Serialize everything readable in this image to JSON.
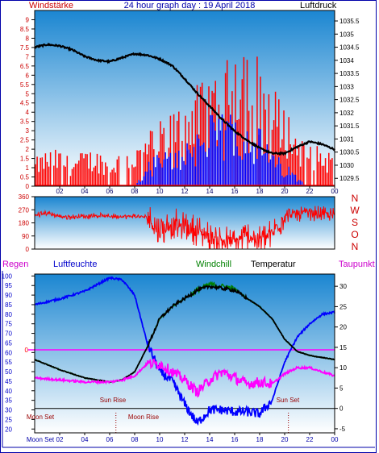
{
  "title": "24 hour graph day : 19 April 2018",
  "colors": {
    "wind": "#ff0000",
    "gust": "#0000ff",
    "pressure": "#000000",
    "direction": "#ff0000",
    "humidity": "#0000ff",
    "temperature": "#000000",
    "windchill": "#008000",
    "dewpoint": "#ff00ff",
    "rain": "#ff0000",
    "axis_blue": "#0000aa",
    "gradient_top": "#1b86d1",
    "gradient_bottom": "#ffffff"
  },
  "x_ticks": [
    "02",
    "04",
    "06",
    "08",
    "10",
    "12",
    "14",
    "16",
    "18",
    "20",
    "22",
    "00"
  ],
  "panel1": {
    "left_label": "Windstärke",
    "right_label": "Luftdruck",
    "wind_ticks": [
      "0",
      "0.5",
      "1",
      "1.5",
      "2",
      "2.5",
      "3",
      "3.5",
      "4",
      "4.5",
      "5",
      "5.5",
      "6",
      "6.5",
      "7",
      "7.5",
      "8",
      "8.5",
      "9"
    ],
    "pressure_ticks": [
      "1029.5",
      "1030",
      "1030.5",
      "1031",
      "1031.5",
      "1032",
      "1032.5",
      "1033",
      "1033.5",
      "1034",
      "1034.5",
      "1035",
      "1035.5"
    ]
  },
  "panel2": {
    "dir_ticks": [
      "0",
      "90",
      "180",
      "270",
      "360"
    ],
    "compass": [
      "N",
      "W",
      "S",
      "O",
      "N"
    ]
  },
  "panel3": {
    "labels": {
      "rain": "Regen",
      "humidity": "Luftfeuchte",
      "windchill": "Windchill",
      "temperature": "Temperatur",
      "dewpoint": "Taupunkt"
    },
    "hum_ticks": [
      "20",
      "25",
      "30",
      "35",
      "40",
      "45",
      "50",
      "55",
      "60",
      "65",
      "70",
      "75",
      "80",
      "85",
      "90",
      "95",
      "100"
    ],
    "temp_ticks": [
      "-5",
      "0",
      "5",
      "10",
      "15",
      "20",
      "25",
      "30"
    ],
    "rain_zero": "0",
    "events": {
      "sun_rise": "Sun Rise",
      "sun_set": "Sun Set",
      "moon_set": "Moon Set",
      "moon_rise": "Moon Rise",
      "moon_set_bottom": "Moon Set"
    }
  },
  "chart_data": [
    {
      "type": "line",
      "title": "24 hour graph day : 19 April 2018",
      "ylabel": "Windstärke",
      "y2label": "Luftdruck",
      "x_unit": "hour",
      "ylim": [
        0,
        9.5
      ],
      "y2lim": [
        1029.2,
        1035.9
      ],
      "series": [
        {
          "name": "Luftdruck",
          "axis": "right",
          "x": [
            0,
            1,
            2,
            3,
            4,
            5,
            6,
            7,
            8,
            9,
            10,
            11,
            12,
            13,
            14,
            15,
            16,
            17,
            18,
            19,
            20,
            21,
            22,
            23,
            24
          ],
          "values": [
            1034.5,
            1034.6,
            1034.55,
            1034.4,
            1034.15,
            1034.0,
            1033.95,
            1034.1,
            1034.25,
            1034.2,
            1034.05,
            1033.8,
            1033.3,
            1032.75,
            1032.25,
            1031.75,
            1031.3,
            1030.95,
            1030.65,
            1030.45,
            1030.45,
            1030.7,
            1030.9,
            1030.8,
            1030.6
          ]
        },
        {
          "name": "Wind max",
          "x": [
            0,
            1,
            2,
            3,
            4,
            5,
            6,
            7,
            8,
            9,
            10,
            11,
            12,
            13,
            14,
            15,
            16,
            17,
            18,
            19,
            20,
            21,
            22,
            23,
            24
          ],
          "values": [
            1.5,
            2,
            2,
            1.5,
            2,
            2,
            1.5,
            2,
            2,
            3,
            3.5,
            4,
            5,
            5.5,
            6,
            5.5,
            9,
            8.5,
            7,
            5.5,
            4.5,
            3,
            2.5,
            2,
            2
          ]
        },
        {
          "name": "Wind mean",
          "x": [
            0,
            1,
            2,
            3,
            4,
            5,
            6,
            7,
            8,
            9,
            10,
            11,
            12,
            13,
            14,
            15,
            16,
            17,
            18,
            19,
            20,
            21,
            22,
            23,
            24
          ],
          "values": [
            0,
            0,
            0,
            0,
            0,
            0,
            0,
            0,
            0,
            1,
            1.5,
            1.5,
            2,
            2.5,
            3,
            3,
            3.5,
            3,
            2.5,
            1.5,
            1,
            0.5,
            0,
            0,
            0
          ]
        }
      ]
    },
    {
      "type": "line",
      "ylim": [
        0,
        360
      ],
      "x_unit": "hour",
      "series": [
        {
          "name": "Windrichtung",
          "x": [
            0,
            1,
            2,
            3,
            4,
            5,
            6,
            7,
            8,
            9,
            10,
            11,
            12,
            13,
            14,
            15,
            16,
            17,
            18,
            19,
            20,
            21,
            22,
            23,
            24
          ],
          "values": [
            230,
            250,
            225,
            220,
            225,
            230,
            225,
            225,
            225,
            220,
            120,
            180,
            150,
            130,
            80,
            60,
            50,
            90,
            60,
            100,
            230,
            240,
            250,
            240,
            230
          ]
        }
      ]
    },
    {
      "type": "line",
      "ylabel": "Luftfeuchte",
      "y2label": "Temperatur",
      "x_unit": "hour",
      "ylim": [
        18,
        101
      ],
      "y2lim": [
        -6,
        33
      ],
      "series": [
        {
          "name": "Luftfeuchte",
          "x": [
            0,
            2,
            4,
            6,
            7,
            8,
            9,
            10,
            11,
            12,
            13,
            14,
            15,
            16,
            17,
            18,
            19,
            20,
            21,
            22,
            23,
            24
          ],
          "values": [
            85,
            88,
            92,
            99,
            98,
            90,
            65,
            50,
            45,
            33,
            23,
            30,
            30,
            29,
            29,
            28,
            35,
            55,
            68,
            75,
            80,
            81
          ]
        },
        {
          "name": "Temperatur",
          "axis": "right",
          "x": [
            0,
            2,
            4,
            6,
            7,
            8,
            9,
            10,
            11,
            12,
            13,
            14,
            15,
            16,
            17,
            18,
            19,
            20,
            21,
            22,
            23,
            24
          ],
          "values": [
            12,
            9.5,
            7.5,
            6.5,
            7,
            9,
            15,
            22,
            25,
            27,
            29,
            30,
            29.5,
            29,
            27,
            25,
            22,
            17,
            14,
            13,
            12.5,
            12
          ]
        },
        {
          "name": "Windchill",
          "axis": "right",
          "x": [
            0,
            2,
            4,
            6,
            7,
            8,
            9,
            10,
            11,
            12,
            13,
            14,
            15,
            16,
            17,
            18,
            19,
            20,
            21,
            22,
            23,
            24
          ],
          "values": [
            12,
            9.5,
            7.5,
            6.5,
            7,
            9,
            15,
            22,
            25,
            27,
            29,
            30.5,
            30,
            29.5,
            27,
            25,
            22,
            17,
            14,
            13,
            12.5,
            12
          ]
        },
        {
          "name": "Taupunkt",
          "axis": "right",
          "x": [
            0,
            2,
            4,
            6,
            7,
            8,
            9,
            10,
            11,
            12,
            13,
            14,
            15,
            16,
            17,
            18,
            19,
            20,
            21,
            22,
            23,
            24
          ],
          "values": [
            7.5,
            7,
            6.5,
            6.5,
            7,
            8,
            11,
            11,
            9,
            7,
            4,
            7,
            9,
            7.5,
            6,
            6.5,
            6,
            8.5,
            10,
            10,
            9,
            8
          ]
        },
        {
          "name": "Regen",
          "x": [
            0,
            24
          ],
          "values": [
            0,
            0
          ]
        }
      ]
    }
  ]
}
